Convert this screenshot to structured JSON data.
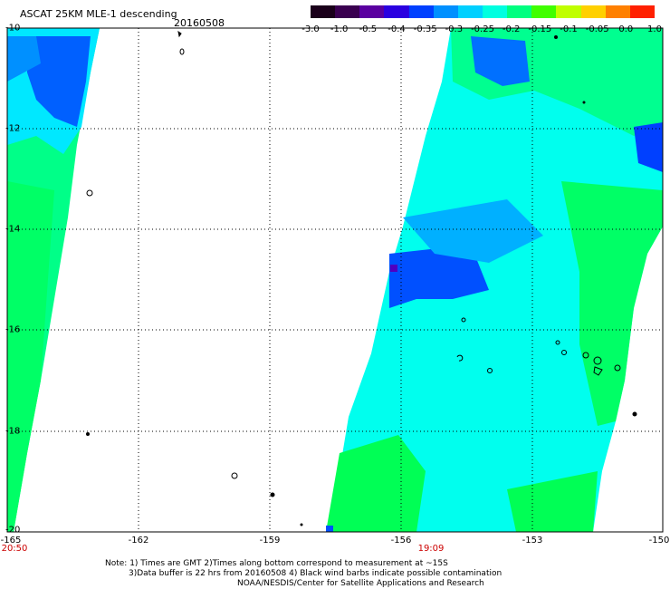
{
  "title": "ASCAT 25KM MLE-1 descending",
  "date": "20160508",
  "colorbar": {
    "ticks": [
      "-3.0",
      "-1.0",
      "-0.5",
      "-0.4",
      "-0.35",
      "-0.3",
      "-0.25",
      "-0.2",
      "-0.15",
      "-0.1",
      "-0.05",
      "0.0",
      "1.0"
    ],
    "colors": [
      "#1a001a",
      "#3a0050",
      "#5a00a0",
      "#2a00e0",
      "#0040ff",
      "#0090ff",
      "#00d0ff",
      "#00ffe0",
      "#00ff80",
      "#40ff00",
      "#c0ff00",
      "#ffd000",
      "#ff8000",
      "#ff2000"
    ]
  },
  "axes": {
    "lat_ticks": [
      "-10",
      "-12",
      "-14",
      "-16",
      "-18",
      "-20"
    ],
    "lon_ticks": [
      "-165",
      "-162",
      "-159",
      "-156",
      "-153",
      "-150"
    ],
    "time_labels": [
      {
        "text": "20:50",
        "lon": -165
      },
      {
        "text": "19:09",
        "lon": -155
      }
    ]
  },
  "notes": [
    "Note: 1) Times are GMT 2)Times along bottom correspond to measurement at ~15S",
    "3)Data buffer is 22 hrs from 20160508 4) Black wind barbs indicate possible contamination",
    "NOAA/NESDIS/Center for Satellite Applications and Research"
  ],
  "swath_colors": {
    "cyan": "#00ffee",
    "green": "#00ff66",
    "lightgreen": "#40ff40",
    "blue": "#0050ff",
    "skyblue": "#00b8ff",
    "purple": "#5000c0"
  }
}
